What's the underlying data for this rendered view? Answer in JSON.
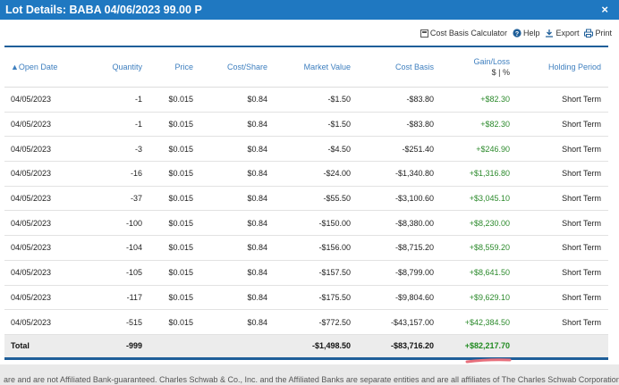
{
  "window": {
    "title": "Lot Details: BABA 04/06/2023 99.00 P",
    "close_label": "×"
  },
  "toolbar": {
    "calculator": "Cost Basis Calculator",
    "help": "Help",
    "export": "Export",
    "print": "Print"
  },
  "columns": {
    "open_date": "▲Open Date",
    "quantity": "Quantity",
    "price": "Price",
    "cost_share": "Cost/Share",
    "market_value": "Market Value",
    "cost_basis": "Cost Basis",
    "gain_loss": "Gain/Loss",
    "gain_loss_sub": "$ | %",
    "holding_period": "Holding Period"
  },
  "rows": [
    {
      "date": "04/05/2023",
      "qty": "-1",
      "price": "$0.015",
      "cost": "$0.84",
      "mv": "-$1.50",
      "cb": "-$83.80",
      "gl": "+$82.30",
      "hp": "Short Term"
    },
    {
      "date": "04/05/2023",
      "qty": "-1",
      "price": "$0.015",
      "cost": "$0.84",
      "mv": "-$1.50",
      "cb": "-$83.80",
      "gl": "+$82.30",
      "hp": "Short Term"
    },
    {
      "date": "04/05/2023",
      "qty": "-3",
      "price": "$0.015",
      "cost": "$0.84",
      "mv": "-$4.50",
      "cb": "-$251.40",
      "gl": "+$246.90",
      "hp": "Short Term"
    },
    {
      "date": "04/05/2023",
      "qty": "-16",
      "price": "$0.015",
      "cost": "$0.84",
      "mv": "-$24.00",
      "cb": "-$1,340.80",
      "gl": "+$1,316.80",
      "hp": "Short Term"
    },
    {
      "date": "04/05/2023",
      "qty": "-37",
      "price": "$0.015",
      "cost": "$0.84",
      "mv": "-$55.50",
      "cb": "-$3,100.60",
      "gl": "+$3,045.10",
      "hp": "Short Term"
    },
    {
      "date": "04/05/2023",
      "qty": "-100",
      "price": "$0.015",
      "cost": "$0.84",
      "mv": "-$150.00",
      "cb": "-$8,380.00",
      "gl": "+$8,230.00",
      "hp": "Short Term"
    },
    {
      "date": "04/05/2023",
      "qty": "-104",
      "price": "$0.015",
      "cost": "$0.84",
      "mv": "-$156.00",
      "cb": "-$8,715.20",
      "gl": "+$8,559.20",
      "hp": "Short Term"
    },
    {
      "date": "04/05/2023",
      "qty": "-105",
      "price": "$0.015",
      "cost": "$0.84",
      "mv": "-$157.50",
      "cb": "-$8,799.00",
      "gl": "+$8,641.50",
      "hp": "Short Term"
    },
    {
      "date": "04/05/2023",
      "qty": "-117",
      "price": "$0.015",
      "cost": "$0.84",
      "mv": "-$175.50",
      "cb": "-$9,804.60",
      "gl": "+$9,629.10",
      "hp": "Short Term"
    },
    {
      "date": "04/05/2023",
      "qty": "-515",
      "price": "$0.015",
      "cost": "$0.84",
      "mv": "-$772.50",
      "cb": "-$43,157.00",
      "gl": "+$42,384.50",
      "hp": "Short Term"
    }
  ],
  "total": {
    "label": "Total",
    "qty": "-999",
    "mv": "-$1,498.50",
    "cb": "-$83,716.20",
    "gl": "+$82,217.70"
  },
  "footer": "are and are not Affiliated Bank-guaranteed. Charles Schwab & Co., Inc. and the Affiliated Banks are separate entities and are all affiliates of The Charles Schwab Corporation.",
  "colors": {
    "title_bar": "#1f78c1",
    "header_text": "#3e7fbf",
    "gain": "#2c8a2c",
    "border": "#1f5f99"
  }
}
